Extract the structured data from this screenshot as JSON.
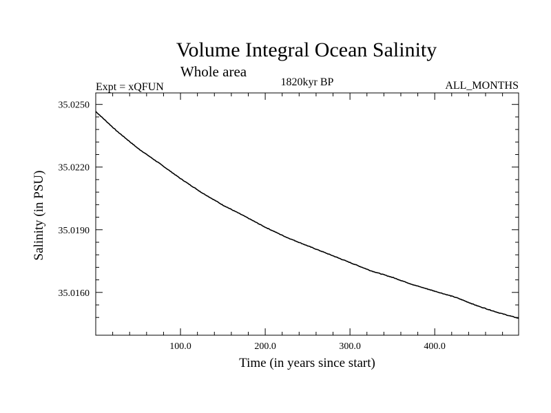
{
  "chart_data": {
    "type": "line",
    "title": "Volume Integral Ocean Salinity",
    "subtitle": "Whole area",
    "left_label": "Expt = xQFUN",
    "center_label": "1820kyr BP",
    "right_label": "ALL_MONTHS",
    "xlabel": "Time (in years since start)",
    "ylabel": "Salinity (in PSU)",
    "xlim": [
      0,
      499
    ],
    "ylim": [
      35.01395,
      35.02555
    ],
    "x_ticks": [
      {
        "value": 100,
        "label": "100.0"
      },
      {
        "value": 200,
        "label": "200.0"
      },
      {
        "value": 300,
        "label": "300.0"
      },
      {
        "value": 400,
        "label": "400.0"
      }
    ],
    "y_ticks": [
      {
        "value": 35.016,
        "label": "35.0160"
      },
      {
        "value": 35.019,
        "label": "35.0190"
      },
      {
        "value": 35.022,
        "label": "35.0220"
      },
      {
        "value": 35.025,
        "label": "35.0250"
      }
    ],
    "grid": false,
    "series": [
      {
        "name": "Salinity",
        "x": [
          0,
          25,
          50,
          75,
          100,
          125,
          150,
          175,
          200,
          225,
          250,
          275,
          300,
          325,
          350,
          375,
          400,
          425,
          450,
          475,
          499
        ],
        "values": [
          35.02466,
          35.02372,
          35.02289,
          35.02218,
          35.02145,
          35.02078,
          35.02018,
          35.01966,
          35.01912,
          35.01864,
          35.01823,
          35.01783,
          35.01743,
          35.01703,
          35.01672,
          35.01636,
          35.01606,
          35.01576,
          35.01536,
          35.01503,
          35.01476
        ]
      }
    ]
  }
}
